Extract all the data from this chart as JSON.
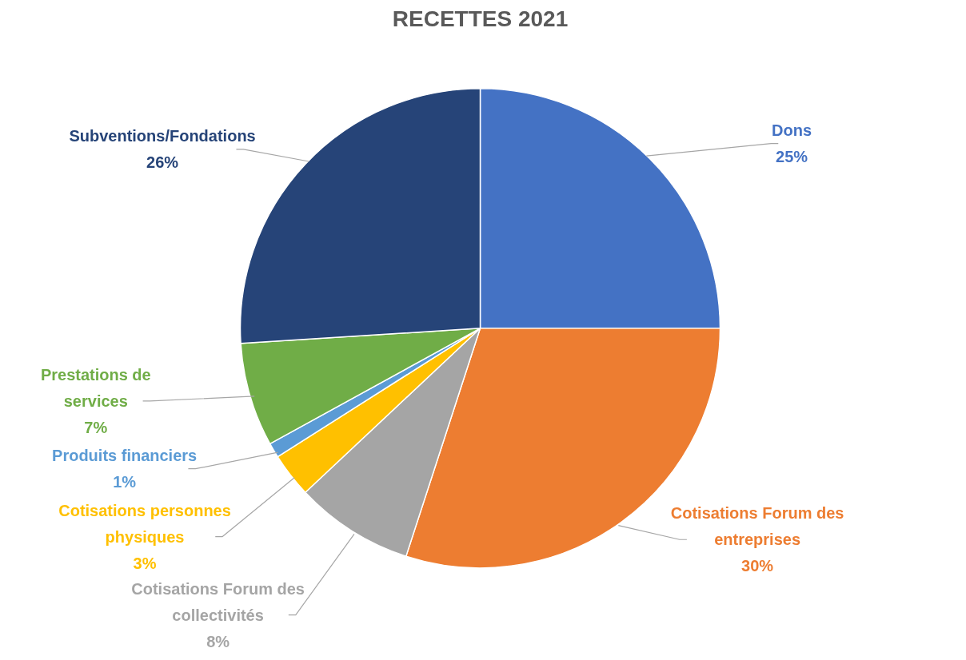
{
  "chart_data": {
    "type": "pie",
    "title": "RECETTES 2021",
    "categories": [
      "Dons",
      "Cotisations Forum des entreprises",
      "Cotisations Forum des collectivités",
      "Cotisations personnes physiques",
      "Produits financiers",
      "Prestations de services",
      "Subventions/Fondations"
    ],
    "values": [
      25,
      30,
      8,
      3,
      1,
      7,
      26
    ],
    "colors": [
      "#4472c4",
      "#ed7d31",
      "#a5a5a5",
      "#ffc000",
      "#5b9bd5",
      "#70ad47",
      "#264478"
    ],
    "value_labels": [
      "25%",
      "30%",
      "8%",
      "3%",
      "1%",
      "7%",
      "26%"
    ]
  }
}
